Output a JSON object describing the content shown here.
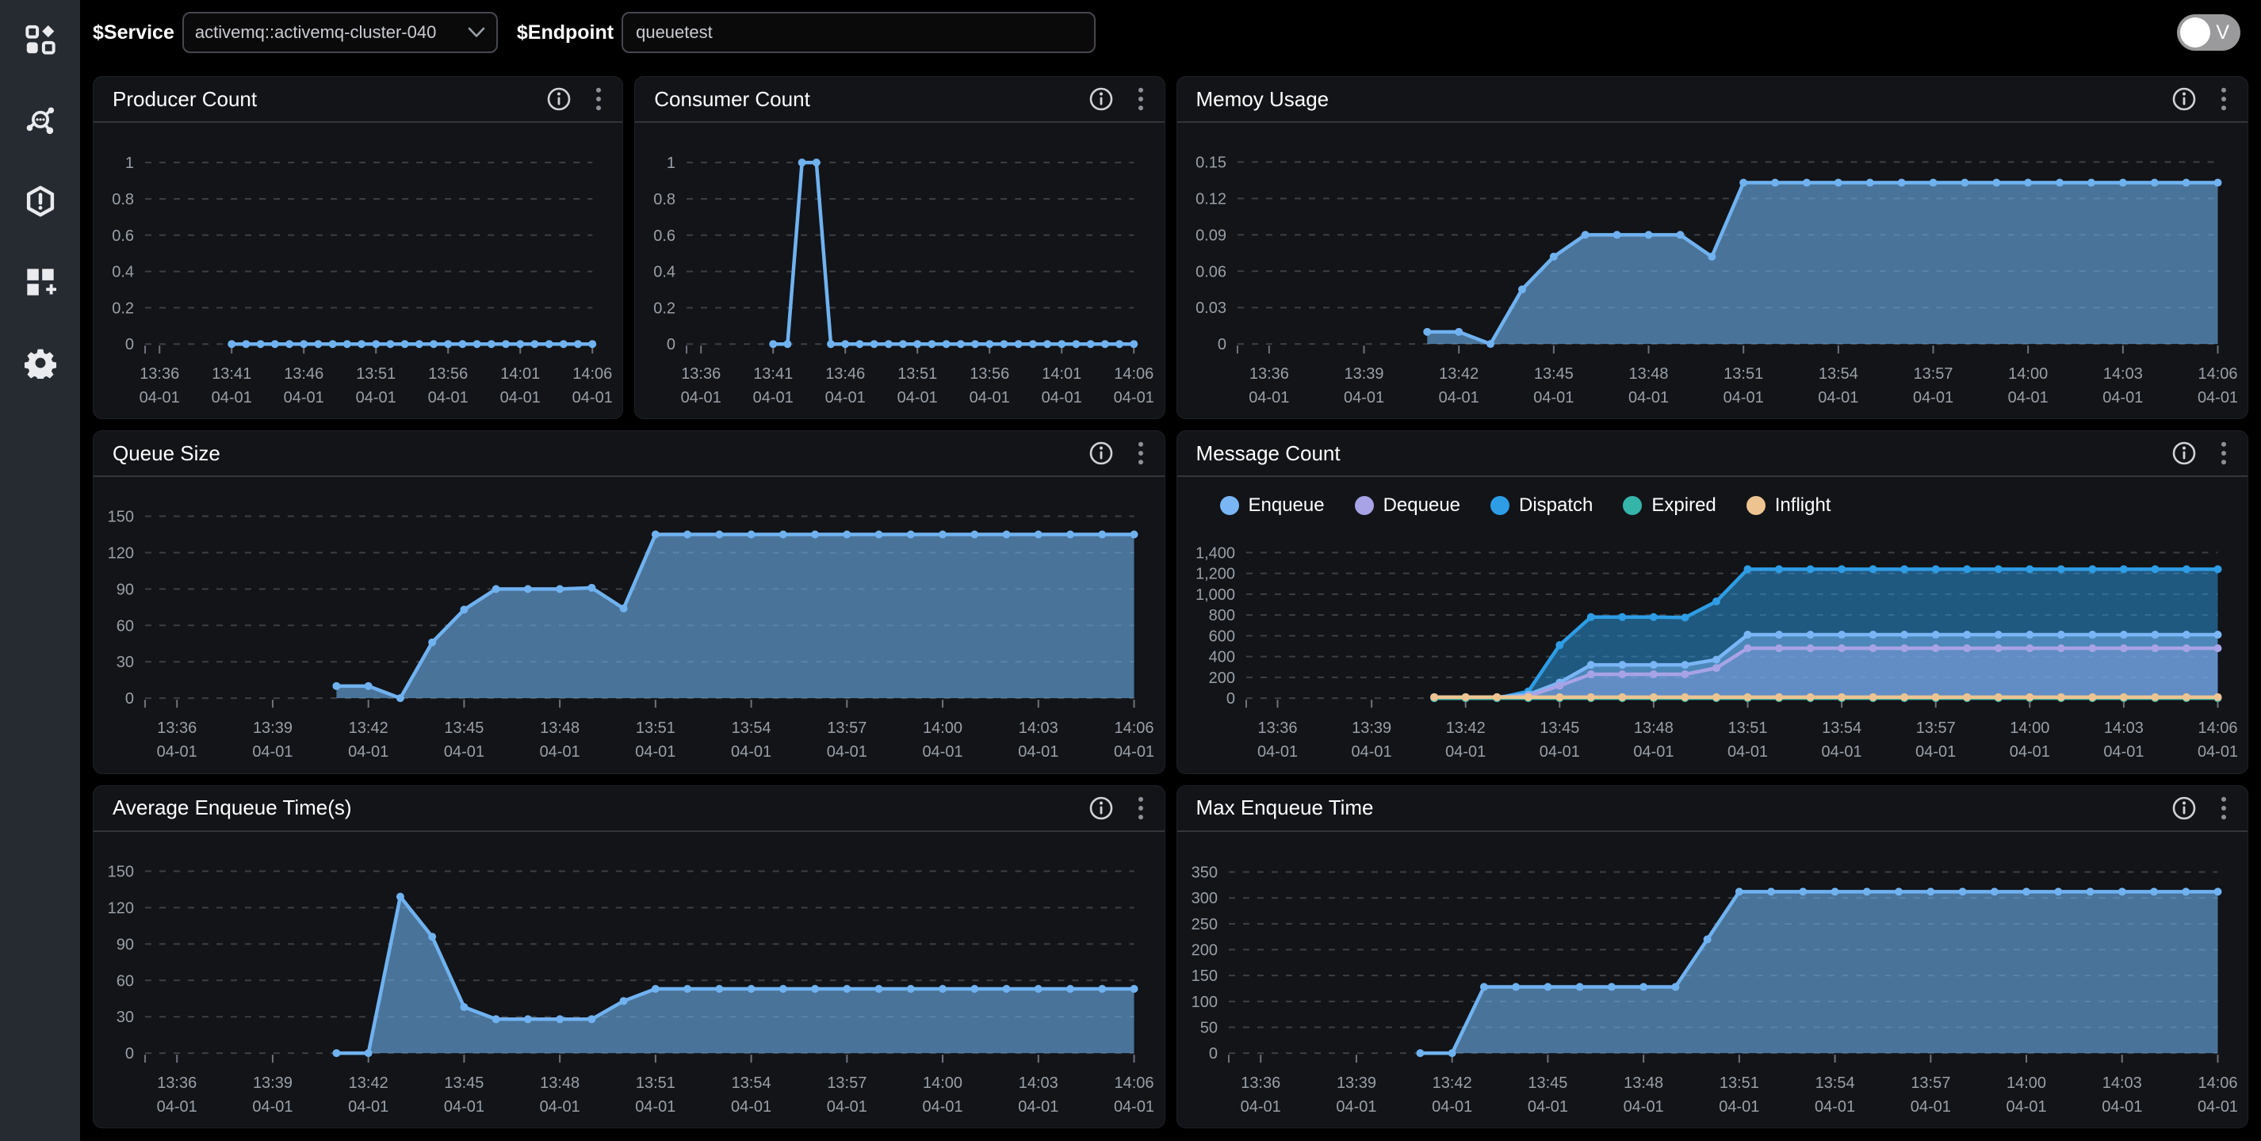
{
  "topbar": {
    "service_label": "$Service",
    "service_value": "activemq::activemq-cluster-040",
    "endpoint_label": "$Endpoint",
    "endpoint_value": "queuetest",
    "toggle_label": "V"
  },
  "sidebar": {
    "icons": [
      "apps-icon",
      "cluster-icon",
      "alert-hexagon-icon",
      "add-panel-icon",
      "settings-icon"
    ]
  },
  "panel_action_icons": [
    "info-icon",
    "kebab-menu-icon"
  ],
  "colors": {
    "background": "#000000",
    "sidebar": "#262b32",
    "panel": "#121418",
    "accent_line": "#70b2f0",
    "accent_fill": "rgba(112,178,240,0.6)",
    "grid": "#80858c",
    "tick_text": "#9aa0a7"
  },
  "x_axis": {
    "date": "04-01",
    "domain_max": 31,
    "data_start_offset": 6,
    "tick_sets": {
      "small": [
        {
          "m": 1,
          "t": "13:36"
        },
        {
          "m": 6,
          "t": "13:41"
        },
        {
          "m": 11,
          "t": "13:46"
        },
        {
          "m": 16,
          "t": "13:51"
        },
        {
          "m": 21,
          "t": "13:56"
        },
        {
          "m": 26,
          "t": "14:01"
        },
        {
          "m": 31,
          "t": "14:06"
        }
      ],
      "wide": [
        {
          "m": 1,
          "t": "13:36"
        },
        {
          "m": 4,
          "t": "13:39"
        },
        {
          "m": 7,
          "t": "13:42"
        },
        {
          "m": 10,
          "t": "13:45"
        },
        {
          "m": 13,
          "t": "13:48"
        },
        {
          "m": 16,
          "t": "13:51"
        },
        {
          "m": 19,
          "t": "13:54"
        },
        {
          "m": 22,
          "t": "13:57"
        },
        {
          "m": 25,
          "t": "14:00"
        },
        {
          "m": 28,
          "t": "14:03"
        },
        {
          "m": 31,
          "t": "14:06"
        }
      ]
    }
  },
  "chart_data": [
    {
      "key": "producer",
      "title": "Producer Count",
      "type": "line",
      "xticks": "small",
      "ymax": 1.07,
      "yticks": [
        {
          "v": 0,
          "l": "0"
        },
        {
          "v": 0.2,
          "l": "0.2"
        },
        {
          "v": 0.4,
          "l": "0.4"
        },
        {
          "v": 0.6,
          "l": "0.6"
        },
        {
          "v": 0.8,
          "l": "0.8"
        },
        {
          "v": 1,
          "l": "1"
        }
      ],
      "series": [
        {
          "name": "Producer Count",
          "color": "#70b2f0",
          "fill": "none",
          "values": [
            0,
            0,
            0,
            0,
            0,
            0,
            0,
            0,
            0,
            0,
            0,
            0,
            0,
            0,
            0,
            0,
            0,
            0,
            0,
            0,
            0,
            0,
            0,
            0,
            0,
            0
          ]
        }
      ]
    },
    {
      "key": "consumer",
      "title": "Consumer Count",
      "type": "line",
      "xticks": "small",
      "ymax": 1.07,
      "yticks": [
        {
          "v": 0,
          "l": "0"
        },
        {
          "v": 0.2,
          "l": "0.2"
        },
        {
          "v": 0.4,
          "l": "0.4"
        },
        {
          "v": 0.6,
          "l": "0.6"
        },
        {
          "v": 0.8,
          "l": "0.8"
        },
        {
          "v": 1,
          "l": "1"
        }
      ],
      "series": [
        {
          "name": "Consumer Count",
          "color": "#70b2f0",
          "fill": "none",
          "values": [
            0,
            0,
            1,
            1,
            0,
            0,
            0,
            0,
            0,
            0,
            0,
            0,
            0,
            0,
            0,
            0,
            0,
            0,
            0,
            0,
            0,
            0,
            0,
            0,
            0,
            0
          ]
        }
      ]
    },
    {
      "key": "memory",
      "title": "Memoy Usage",
      "type": "area",
      "xticks": "wide",
      "ymax": 0.16,
      "yticks": [
        {
          "v": 0,
          "l": "0"
        },
        {
          "v": 0.03,
          "l": "0.03"
        },
        {
          "v": 0.06,
          "l": "0.06"
        },
        {
          "v": 0.09,
          "l": "0.09"
        },
        {
          "v": 0.12,
          "l": "0.12"
        },
        {
          "v": 0.15,
          "l": "0.15"
        }
      ],
      "series": [
        {
          "name": "Memory Usage",
          "color": "#70b2f0",
          "fill": "rgba(112,178,240,0.6)",
          "values": [
            0.01,
            0.01,
            0,
            0.045,
            0.072,
            0.09,
            0.09,
            0.09,
            0.09,
            0.072,
            0.133,
            0.133,
            0.133,
            0.133,
            0.133,
            0.133,
            0.133,
            0.133,
            0.133,
            0.133,
            0.133,
            0.133,
            0.133,
            0.133,
            0.133,
            0.133
          ]
        }
      ]
    },
    {
      "key": "queue",
      "title": "Queue Size",
      "type": "area",
      "xticks": "wide",
      "ymax": 160,
      "yticks": [
        {
          "v": 0,
          "l": "0"
        },
        {
          "v": 30,
          "l": "30"
        },
        {
          "v": 60,
          "l": "60"
        },
        {
          "v": 90,
          "l": "90"
        },
        {
          "v": 120,
          "l": "120"
        },
        {
          "v": 150,
          "l": "150"
        }
      ],
      "series": [
        {
          "name": "Queue Size",
          "color": "#70b2f0",
          "fill": "rgba(112,178,240,0.6)",
          "values": [
            10,
            10,
            0,
            46,
            73,
            90,
            90,
            90,
            91,
            74,
            135,
            135,
            135,
            135,
            135,
            135,
            135,
            135,
            135,
            135,
            135,
            135,
            135,
            135,
            135,
            135
          ]
        }
      ]
    },
    {
      "key": "message",
      "title": "Message Count",
      "type": "area-multi",
      "xticks": "wide",
      "ymax": 1500,
      "has_legend": true,
      "draw_order": [
        2,
        0,
        1,
        3,
        4
      ],
      "yticks": [
        {
          "v": 0,
          "l": "0"
        },
        {
          "v": 200,
          "l": "200"
        },
        {
          "v": 400,
          "l": "400"
        },
        {
          "v": 600,
          "l": "600"
        },
        {
          "v": 800,
          "l": "800"
        },
        {
          "v": 1000,
          "l": "1,000"
        },
        {
          "v": 1200,
          "l": "1,200"
        },
        {
          "v": 1400,
          "l": "1,400"
        }
      ],
      "series": [
        {
          "name": "Enqueue",
          "color": "#7ab6f5",
          "fill": "rgba(122,182,245,0.5)",
          "values": [
            10,
            10,
            10,
            35,
            150,
            320,
            320,
            320,
            320,
            370,
            610,
            610,
            610,
            610,
            610,
            610,
            610,
            610,
            610,
            610,
            610,
            610,
            610,
            610,
            610,
            610
          ]
        },
        {
          "name": "Dequeue",
          "color": "#a8a3e6",
          "fill": "rgba(168,163,230,0.22)",
          "values": [
            0,
            0,
            0,
            20,
            120,
            230,
            230,
            230,
            230,
            290,
            480,
            480,
            480,
            480,
            480,
            480,
            480,
            480,
            480,
            480,
            480,
            480,
            480,
            480,
            480,
            480
          ]
        },
        {
          "name": "Dispatch",
          "color": "#2e9de5",
          "fill": "rgba(46,157,229,0.5)",
          "values": [
            0,
            0,
            0,
            65,
            510,
            780,
            780,
            780,
            775,
            930,
            1240,
            1240,
            1240,
            1240,
            1240,
            1240,
            1240,
            1240,
            1240,
            1240,
            1240,
            1240,
            1240,
            1240,
            1240,
            1240
          ]
        },
        {
          "name": "Expired",
          "color": "#35b5a9",
          "fill": "none",
          "values": [
            0,
            0,
            0,
            0,
            0,
            0,
            0,
            0,
            0,
            0,
            0,
            0,
            0,
            0,
            0,
            0,
            0,
            0,
            0,
            0,
            0,
            0,
            0,
            0,
            0,
            0
          ]
        },
        {
          "name": "Inflight",
          "color": "#edc491",
          "fill": "none",
          "values": [
            10,
            10,
            10,
            10,
            10,
            10,
            10,
            10,
            10,
            10,
            10,
            10,
            10,
            10,
            10,
            10,
            10,
            10,
            10,
            10,
            10,
            10,
            10,
            10,
            10,
            10
          ]
        }
      ]
    },
    {
      "key": "avg_enqueue",
      "title": "Average Enqueue Time(s)",
      "type": "area",
      "xticks": "wide",
      "ymax": 160,
      "yticks": [
        {
          "v": 0,
          "l": "0"
        },
        {
          "v": 30,
          "l": "30"
        },
        {
          "v": 60,
          "l": "60"
        },
        {
          "v": 90,
          "l": "90"
        },
        {
          "v": 120,
          "l": "120"
        },
        {
          "v": 150,
          "l": "150"
        }
      ],
      "series": [
        {
          "name": "Average Enqueue Time",
          "color": "#70b2f0",
          "fill": "rgba(112,178,240,0.6)",
          "values": [
            0,
            0,
            129,
            96,
            38,
            28,
            28,
            28,
            28,
            43,
            53,
            53,
            53,
            53,
            53,
            53,
            53,
            53,
            53,
            53,
            53,
            53,
            53,
            53,
            53,
            53
          ]
        }
      ]
    },
    {
      "key": "max_enqueue",
      "title": "Max Enqueue Time",
      "type": "area",
      "xticks": "wide",
      "ymax": 375,
      "yticks": [
        {
          "v": 0,
          "l": "0"
        },
        {
          "v": 50,
          "l": "50"
        },
        {
          "v": 100,
          "l": "100"
        },
        {
          "v": 150,
          "l": "150"
        },
        {
          "v": 200,
          "l": "200"
        },
        {
          "v": 250,
          "l": "250"
        },
        {
          "v": 300,
          "l": "300"
        },
        {
          "v": 350,
          "l": "350"
        }
      ],
      "series": [
        {
          "name": "Max Enqueue Time",
          "color": "#70b2f0",
          "fill": "rgba(112,178,240,0.6)",
          "values": [
            0,
            0,
            128,
            128,
            128,
            128,
            128,
            128,
            128,
            220,
            312,
            312,
            312,
            312,
            312,
            312,
            312,
            312,
            312,
            312,
            312,
            312,
            312,
            312,
            312,
            312
          ]
        }
      ]
    }
  ]
}
